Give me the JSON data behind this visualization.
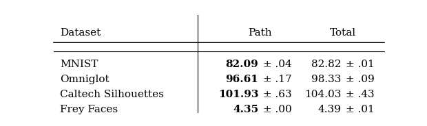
{
  "col_headers": [
    "Dataset",
    "Path",
    "Total"
  ],
  "rows": [
    {
      "dataset": "MNIST",
      "path_bold": "82.09",
      "path_pm": "± .04",
      "total_val": "82.82",
      "total_pm": "± .01"
    },
    {
      "dataset": "Omniglot",
      "path_bold": "96.61",
      "path_pm": "± .17",
      "total_val": "98.33",
      "total_pm": "± .09"
    },
    {
      "dataset": "Caltech Silhouettes",
      "path_bold": "101.93",
      "path_pm": "± .63",
      "total_val": "104.03",
      "total_pm": "± .43"
    },
    {
      "dataset": "Frey Faces",
      "path_bold": "4.35",
      "path_pm": "± .00",
      "total_val": "4.39",
      "total_pm": "± .01"
    }
  ],
  "bg_color": "#ffffff",
  "text_color": "#000000",
  "font_size": 11
}
